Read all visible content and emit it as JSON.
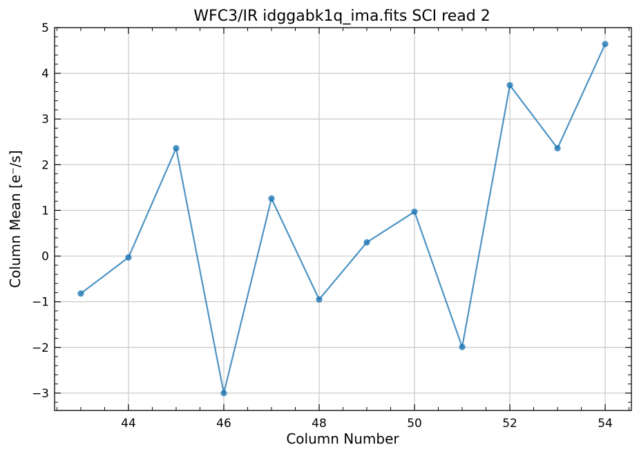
{
  "chart_data": {
    "type": "line",
    "title": "WFC3/IR idggabk1q_ima.fits SCI read 2",
    "xlabel": "Column Number",
    "ylabel": "Column Mean [e⁻/s]",
    "xlim": [
      42.45,
      54.55
    ],
    "ylim": [
      -3.38,
      5.0
    ],
    "xticks": [
      44,
      46,
      48,
      50,
      52,
      54
    ],
    "xtick_labels": [
      "44",
      "46",
      "48",
      "50",
      "52",
      "54"
    ],
    "yticks": [
      -3,
      -2,
      -1,
      0,
      1,
      2,
      3,
      4,
      5
    ],
    "ytick_labels": [
      "−3",
      "−2",
      "−1",
      "0",
      "1",
      "2",
      "3",
      "4",
      "5"
    ],
    "grid": true,
    "series": [
      {
        "color": "#1f77b4",
        "marker": "circle",
        "x": [
          43,
          44,
          45,
          46,
          47,
          48,
          49,
          50,
          51,
          52,
          53,
          54
        ],
        "y": [
          -0.82,
          -0.03,
          2.36,
          -3.0,
          1.26,
          -0.95,
          0.3,
          0.97,
          -1.99,
          3.74,
          2.36,
          4.64
        ]
      }
    ]
  }
}
